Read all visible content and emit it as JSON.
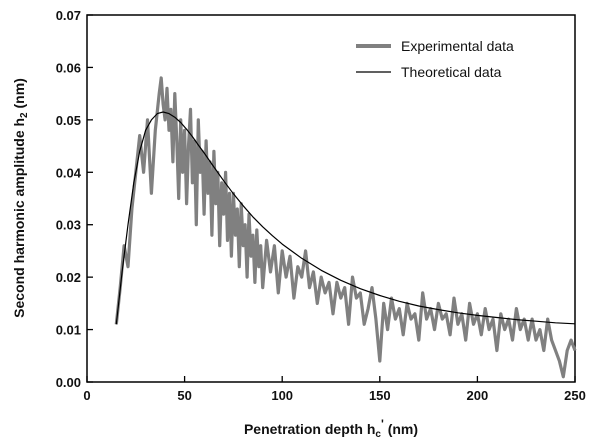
{
  "chart_data": {
    "type": "line",
    "title": "",
    "xlabel": "Penetration depth h",
    "xlabel_sub": "c",
    "xlabel_sup": "'",
    "xlabel_unit": "(nm)",
    "ylabel": "Second harmonic amplitude h",
    "ylabel_sub": "2",
    "ylabel_unit": "(nm)",
    "xlim": [
      0,
      250
    ],
    "ylim": [
      0.0,
      0.07
    ],
    "x_ticks": [
      0,
      50,
      100,
      150,
      200,
      250
    ],
    "y_ticks": [
      0.0,
      0.01,
      0.02,
      0.03,
      0.04,
      0.05,
      0.06,
      0.07
    ],
    "y_tick_labels": [
      "0.00",
      "0.01",
      "0.02",
      "0.03",
      "0.04",
      "0.05",
      "0.06",
      "0.07"
    ],
    "grid": false,
    "legend_position": "top-right",
    "series": [
      {
        "name": "Experimental data",
        "color": "#808080",
        "style": "thick",
        "x": [
          15,
          17,
          19,
          21,
          23,
          25,
          27,
          29,
          31,
          33,
          35,
          37,
          38,
          39,
          40,
          41,
          42,
          43,
          44,
          45,
          46,
          47,
          48,
          49,
          50,
          51,
          52,
          53,
          54,
          55,
          56,
          57,
          58,
          59,
          60,
          61,
          62,
          63,
          64,
          65,
          66,
          67,
          68,
          69,
          70,
          71,
          72,
          73,
          74,
          75,
          76,
          77,
          78,
          79,
          80,
          81,
          82,
          83,
          84,
          85,
          86,
          87,
          88,
          89,
          90,
          92,
          94,
          96,
          98,
          100,
          102,
          104,
          106,
          108,
          110,
          112,
          114,
          116,
          118,
          120,
          122,
          124,
          126,
          128,
          130,
          132,
          134,
          136,
          138,
          140,
          142,
          144,
          146,
          148,
          150,
          152,
          154,
          156,
          158,
          160,
          162,
          164,
          166,
          168,
          170,
          172,
          174,
          176,
          178,
          180,
          182,
          184,
          186,
          188,
          190,
          192,
          194,
          196,
          198,
          200,
          202,
          204,
          206,
          208,
          210,
          212,
          214,
          216,
          218,
          220,
          222,
          224,
          226,
          228,
          230,
          232,
          234,
          236,
          238,
          240,
          242,
          244,
          246,
          248,
          250
        ],
        "values": [
          0.011,
          0.018,
          0.026,
          0.022,
          0.033,
          0.04,
          0.047,
          0.04,
          0.05,
          0.036,
          0.048,
          0.055,
          0.058,
          0.053,
          0.05,
          0.056,
          0.048,
          0.052,
          0.042,
          0.055,
          0.046,
          0.035,
          0.05,
          0.04,
          0.048,
          0.034,
          0.045,
          0.052,
          0.038,
          0.046,
          0.03,
          0.05,
          0.04,
          0.044,
          0.032,
          0.046,
          0.036,
          0.042,
          0.028,
          0.044,
          0.034,
          0.04,
          0.026,
          0.038,
          0.032,
          0.04,
          0.027,
          0.036,
          0.024,
          0.036,
          0.028,
          0.033,
          0.022,
          0.034,
          0.026,
          0.03,
          0.02,
          0.032,
          0.024,
          0.028,
          0.019,
          0.029,
          0.022,
          0.026,
          0.018,
          0.027,
          0.021,
          0.026,
          0.017,
          0.025,
          0.02,
          0.024,
          0.016,
          0.022,
          0.02,
          0.025,
          0.018,
          0.021,
          0.015,
          0.02,
          0.017,
          0.019,
          0.013,
          0.019,
          0.016,
          0.018,
          0.011,
          0.02,
          0.016,
          0.017,
          0.011,
          0.014,
          0.018,
          0.012,
          0.004,
          0.015,
          0.01,
          0.016,
          0.012,
          0.014,
          0.009,
          0.015,
          0.012,
          0.013,
          0.008,
          0.017,
          0.012,
          0.014,
          0.01,
          0.015,
          0.012,
          0.013,
          0.009,
          0.016,
          0.011,
          0.013,
          0.008,
          0.015,
          0.011,
          0.013,
          0.009,
          0.014,
          0.01,
          0.012,
          0.006,
          0.013,
          0.01,
          0.012,
          0.008,
          0.014,
          0.01,
          0.012,
          0.008,
          0.012,
          0.008,
          0.01,
          0.006,
          0.012,
          0.008,
          0.006,
          0.004,
          0.001,
          0.006,
          0.008,
          0.006
        ]
      },
      {
        "name": "Theoretical data",
        "color": "#000000",
        "style": "thin",
        "x": [
          15,
          18,
          21,
          24,
          27,
          30,
          33,
          36,
          39,
          42,
          45,
          48,
          51,
          54,
          57,
          60,
          65,
          70,
          75,
          80,
          85,
          90,
          95,
          100,
          110,
          120,
          130,
          140,
          150,
          160,
          170,
          180,
          190,
          200,
          210,
          220,
          230,
          240,
          250
        ],
        "values": [
          0.011,
          0.021,
          0.03,
          0.038,
          0.044,
          0.048,
          0.05,
          0.0512,
          0.0515,
          0.0512,
          0.0505,
          0.0495,
          0.0482,
          0.0468,
          0.0452,
          0.0437,
          0.041,
          0.0384,
          0.0359,
          0.0336,
          0.0315,
          0.0296,
          0.0279,
          0.0263,
          0.0236,
          0.0213,
          0.0194,
          0.0178,
          0.0165,
          0.0154,
          0.0145,
          0.0138,
          0.0132,
          0.0127,
          0.0123,
          0.0119,
          0.0116,
          0.0113,
          0.0111
        ]
      }
    ]
  }
}
